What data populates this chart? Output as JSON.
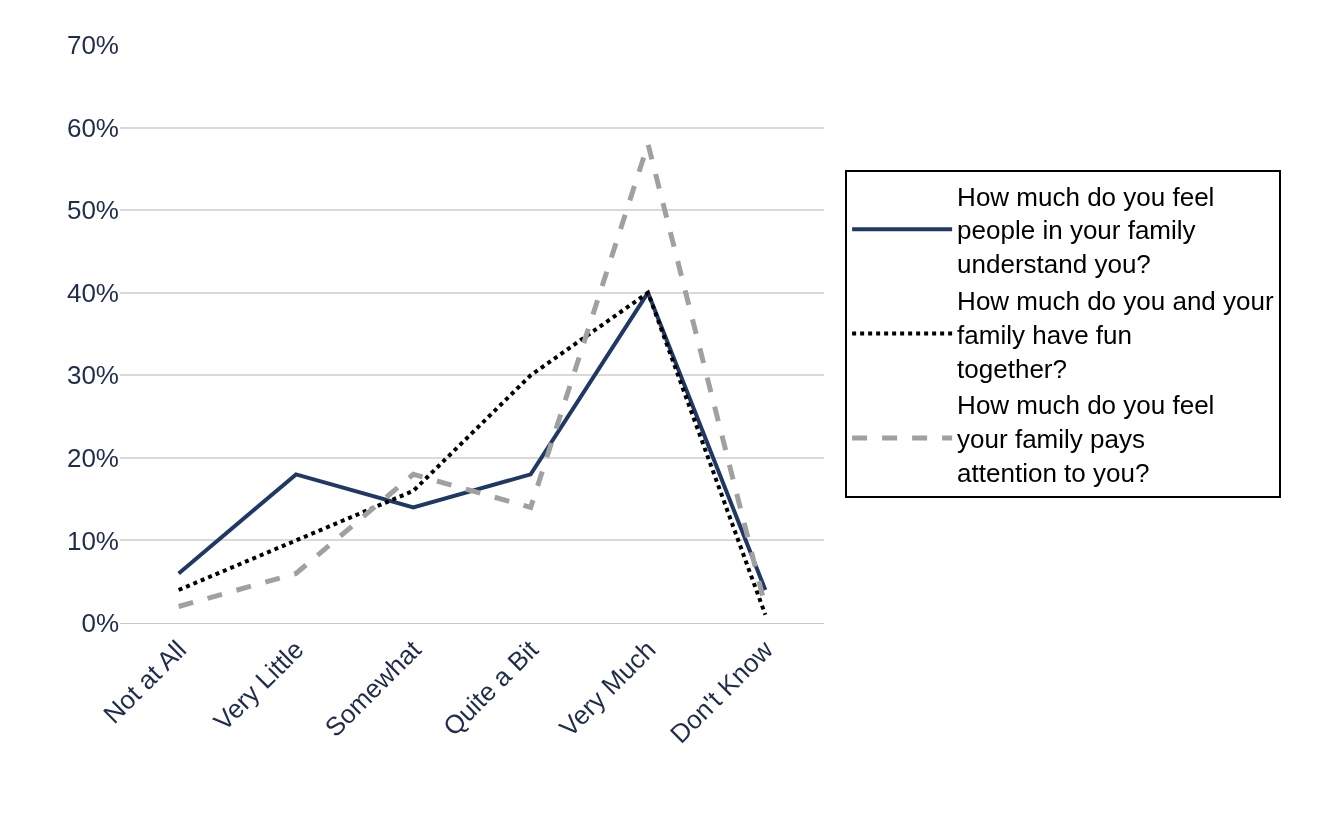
{
  "chart_data": {
    "type": "line",
    "categories": [
      "Not at All",
      "Very Little",
      "Somewhat",
      "Quite a Bit",
      "Very Much",
      "Don't Know"
    ],
    "series": [
      {
        "name": "How much do you feel people in your family understand you?",
        "color": "#203864",
        "line_style": "solid",
        "values": [
          6,
          18,
          14,
          18,
          40,
          4
        ]
      },
      {
        "name": "How much do you and your family have fun together?",
        "color": "#000000",
        "line_style": "dotted",
        "values": [
          4,
          10,
          16,
          30,
          40,
          1
        ]
      },
      {
        "name": "How much do you feel your family pays attention to you?",
        "color": "#a0a0a0",
        "line_style": "dashed",
        "values": [
          2,
          6,
          18,
          14,
          58,
          2
        ]
      }
    ],
    "ylim": [
      0,
      70
    ],
    "yticks": [
      {
        "value": 0,
        "label": "0%"
      },
      {
        "value": 10,
        "label": "10%"
      },
      {
        "value": 20,
        "label": "20%"
      },
      {
        "value": 30,
        "label": "30%"
      },
      {
        "value": 40,
        "label": "40%"
      },
      {
        "value": 50,
        "label": "50%"
      },
      {
        "value": 60,
        "label": "60%"
      },
      {
        "value": 70,
        "label": "70%"
      }
    ],
    "grid": "y",
    "legend": "right",
    "marker": "none"
  }
}
